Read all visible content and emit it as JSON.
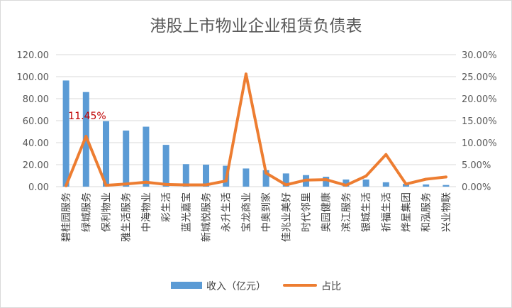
{
  "chart_data": {
    "type": "bar+line",
    "title": "港股上市物业企业租赁负债表",
    "categories": [
      "碧桂园服务",
      "绿城服务",
      "保利物业",
      "雅生活服务",
      "中海物业",
      "彩生活",
      "蓝光嘉宝",
      "新城悦服务",
      "永升生活",
      "宝龙商业",
      "中奥到家",
      "佳兆业美好",
      "时代邻里",
      "奥园健康",
      "滨江服务",
      "银城生活",
      "祈福生活",
      "烨星集团",
      "和泓服务",
      "兴业物联"
    ],
    "series": [
      {
        "name": "收入（亿元）",
        "type": "bar",
        "axis": "left",
        "color": "#5b9bd5",
        "values": [
          96.5,
          86.0,
          59.5,
          51.0,
          54.5,
          38.0,
          20.5,
          20.0,
          19.0,
          16.5,
          15.0,
          12.0,
          10.5,
          9.0,
          6.5,
          6.5,
          4.0,
          2.5,
          2.0,
          1.5
        ]
      },
      {
        "name": "占比",
        "type": "line",
        "axis": "right",
        "color": "#ed7d31",
        "values": [
          0.2,
          11.45,
          0.3,
          0.6,
          1.0,
          0.5,
          0.4,
          0.4,
          1.3,
          25.6,
          3.1,
          0.4,
          1.5,
          1.6,
          0.3,
          2.4,
          7.3,
          0.6,
          1.7,
          2.2
        ]
      }
    ],
    "y_left": {
      "min": 0,
      "max": 120,
      "step": 20,
      "tick_labels": [
        "0.00",
        "20.00",
        "40.00",
        "60.00",
        "80.00",
        "100.00",
        "120.00"
      ]
    },
    "y_right": {
      "min": 0,
      "max": 30,
      "step": 5,
      "tick_labels": [
        "0.00%",
        "5.00%",
        "10.00%",
        "15.00%",
        "20.00%",
        "25.00%",
        "30.00%"
      ]
    },
    "annotation": {
      "series_index": 1,
      "point_index": 1,
      "text": "11.45%",
      "color": "#c00000"
    },
    "legend": {
      "placement": "bottom",
      "items": [
        "收入（亿元）",
        "占比"
      ]
    }
  }
}
